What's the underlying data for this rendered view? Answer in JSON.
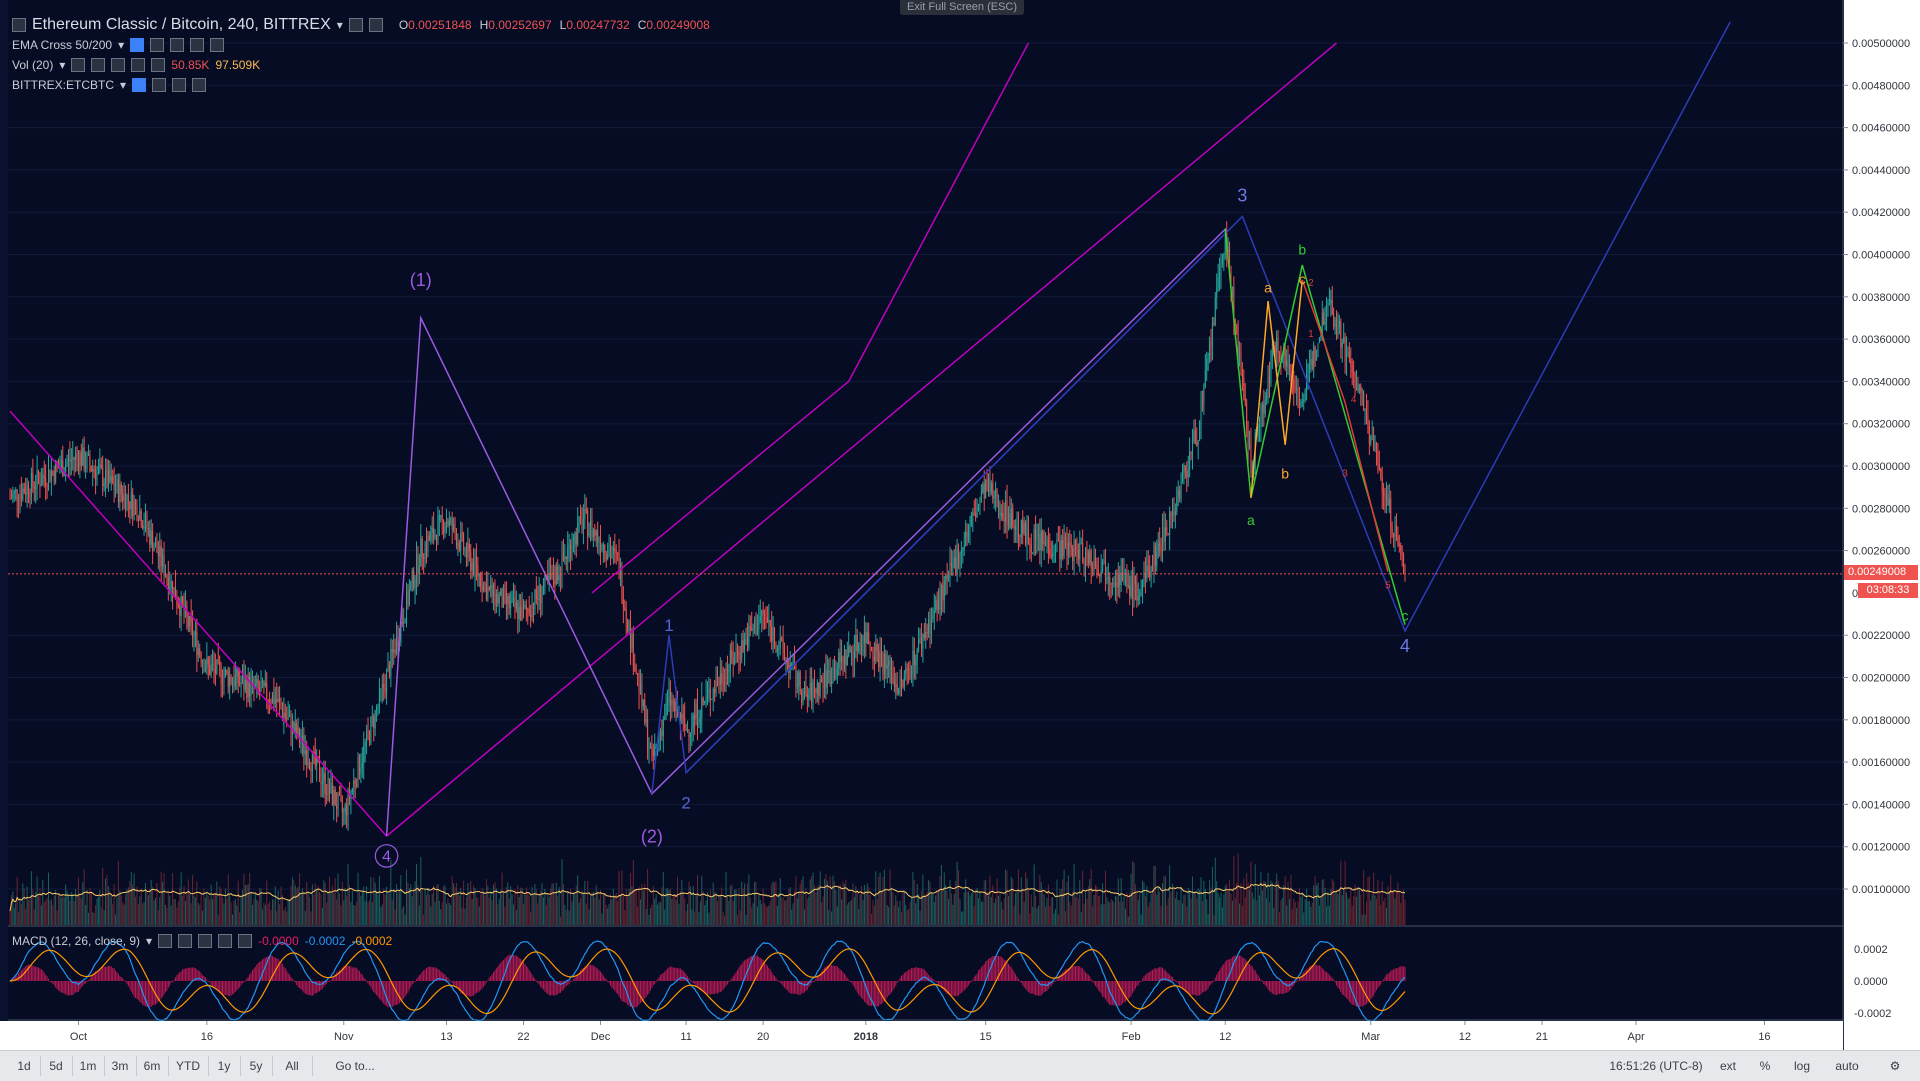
{
  "window": {
    "exit_fullscreen_label": "Exit Full Screen (ESC)"
  },
  "legend": {
    "symbol_title": "Ethereum Classic / Bitcoin, 240, BITTREX",
    "ohlc": [
      {
        "k": "O",
        "v": "0.00251848"
      },
      {
        "k": "H",
        "v": "0.00252697"
      },
      {
        "k": "L",
        "v": "0.00247732"
      },
      {
        "k": "C",
        "v": "0.00249008"
      }
    ],
    "ema_label": "EMA Cross 50/200",
    "vol_label": "Vol (20)",
    "vol_value1": "50.85K",
    "vol_value2": "97.509K",
    "compare_label": "BITTREX:ETCBTC",
    "macd_label": "MACD (12, 26, close, 9)",
    "macd_values": [
      "-0.0000",
      "-0.0002",
      "-0.0002"
    ]
  },
  "colors": {
    "background": "#060c24",
    "up_candle": "#26a69a",
    "down_candle": "#ef5350",
    "channel_magenta": "#c000c0",
    "wave_purple": "#9c5ae0",
    "wave_blue": "#2e3bb8",
    "wave_green": "#33cc33",
    "wave_orange": "#ffa726",
    "wave_red": "#e53935",
    "volume_ma": "#ffcc66",
    "macd_line": "#2196f3",
    "signal_line": "#ff9800",
    "histogram": "#e91e63",
    "last_price": "#ef5350"
  },
  "price_axis": {
    "ticks": [
      "0.00500000",
      "0.00480000",
      "0.00460000",
      "0.00440000",
      "0.00420000",
      "0.00400000",
      "0.00380000",
      "0.00360000",
      "0.00340000",
      "0.00320000",
      "0.00300000",
      "0.00280000",
      "0.00260000",
      "0.00220000",
      "0.00200000",
      "0.00180000",
      "0.00160000",
      "0.00140000",
      "0.00120000",
      "0.00100000"
    ],
    "last_price_label": "0.00249008",
    "countdown": "03:08:33",
    "partial_tick": "0."
  },
  "macd_axis": {
    "ticks": [
      "0.0002",
      "0.0000",
      "-0.0002"
    ]
  },
  "time_axis": {
    "labels": [
      "Oct",
      "16",
      "Nov",
      "13",
      "22",
      "Dec",
      "11",
      "20",
      "2018",
      "15",
      "Feb",
      "12",
      "Mar",
      "12",
      "21",
      "Apr",
      "16"
    ],
    "bold_labels": [
      "2018"
    ]
  },
  "annotations": {
    "primary": [
      {
        "text": "(1)"
      },
      {
        "text": "(2)"
      },
      {
        "text": "4"
      }
    ],
    "intermediate": [
      {
        "text": "1"
      },
      {
        "text": "2"
      },
      {
        "text": "3"
      },
      {
        "text": "4"
      }
    ],
    "abc": [
      {
        "text": "a",
        "color": "orange"
      },
      {
        "text": "b",
        "color": "orange"
      },
      {
        "text": "a",
        "color": "green"
      },
      {
        "text": "b",
        "color": "green"
      },
      {
        "text": "c",
        "color": "orange"
      },
      {
        "text": "c",
        "color": "green"
      }
    ],
    "impulse": [
      {
        "text": "1"
      },
      {
        "text": "2"
      },
      {
        "text": "3"
      },
      {
        "text": "4"
      },
      {
        "text": "5"
      }
    ]
  },
  "bottom_bar": {
    "timeframes": [
      "1d",
      "5d",
      "1m",
      "3m",
      "6m",
      "YTD",
      "1y",
      "5y",
      "All"
    ],
    "goto": "Go to...",
    "clock": "16:51:26 (UTC-8)",
    "ext": "ext",
    "percent": "%",
    "log": "log",
    "auto": "auto"
  },
  "chart_data": {
    "type": "line",
    "title": "Ethereum Classic / Bitcoin, 240, BITTREX",
    "xlabel": "",
    "ylabel": "",
    "ylim": [
      0.0008,
      0.0051
    ],
    "x": [
      "2017-09-23",
      "2017-10-01",
      "2017-10-08",
      "2017-10-16",
      "2017-10-24",
      "2017-11-01",
      "2017-11-06",
      "2017-11-10",
      "2017-11-13",
      "2017-11-18",
      "2017-11-22",
      "2017-11-26",
      "2017-11-29",
      "2017-12-03",
      "2017-12-07",
      "2017-12-09",
      "2017-12-11",
      "2017-12-15",
      "2017-12-20",
      "2017-12-25",
      "2018-01-01",
      "2018-01-05",
      "2018-01-10",
      "2018-01-15",
      "2018-01-20",
      "2018-01-26",
      "2018-02-02",
      "2018-02-06",
      "2018-02-09",
      "2018-02-12",
      "2018-02-15",
      "2018-02-18",
      "2018-02-21",
      "2018-02-24",
      "2018-02-28",
      "2018-03-05"
    ],
    "series": [
      {
        "values": [
          0.00285,
          0.00305,
          0.0028,
          0.00205,
          0.0019,
          0.00135,
          0.002,
          0.0026,
          0.00275,
          0.0024,
          0.0023,
          0.0025,
          0.00275,
          0.00255,
          0.0016,
          0.0019,
          0.00175,
          0.002,
          0.0023,
          0.0019,
          0.0022,
          0.00195,
          0.0024,
          0.0029,
          0.00265,
          0.0026,
          0.0024,
          0.0028,
          0.0032,
          0.0041,
          0.003,
          0.0036,
          0.0033,
          0.0038,
          0.0033,
          0.00249
        ]
      }
    ]
  }
}
